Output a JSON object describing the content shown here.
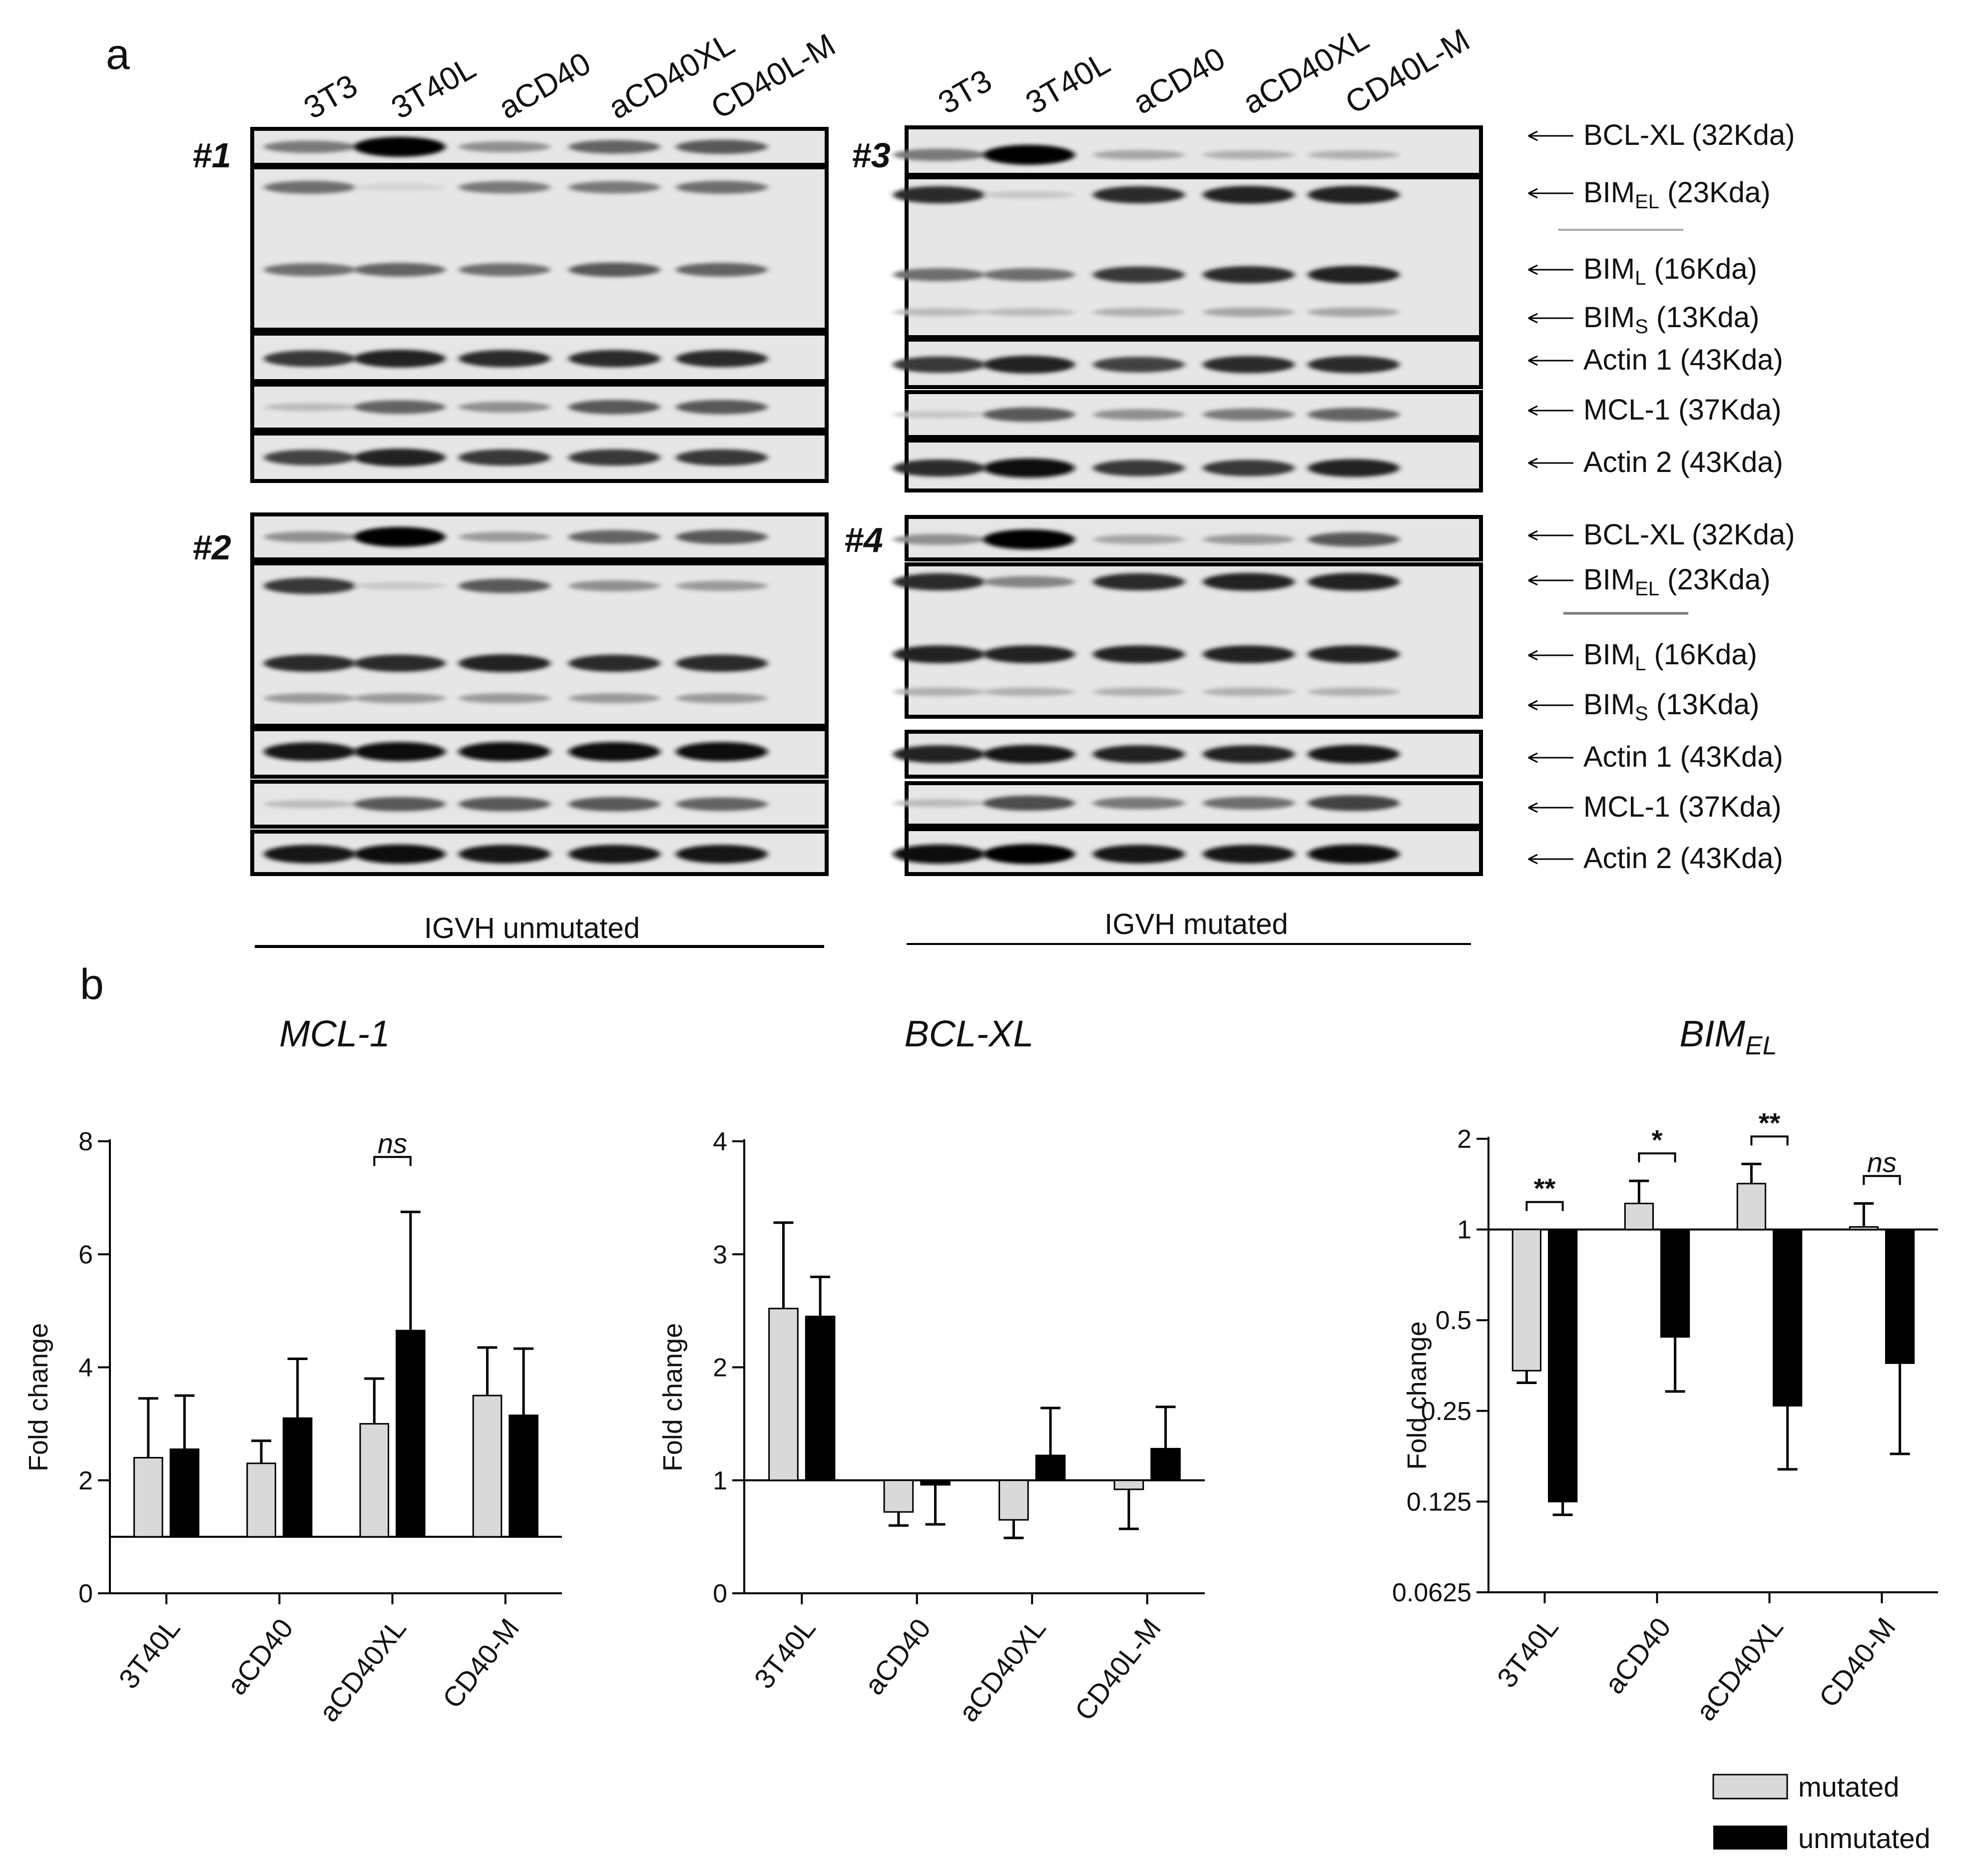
{
  "figure": {
    "panel_a_label": "a",
    "panel_b_label": "b",
    "lanes": [
      "3T3",
      "3T40L",
      "aCD40",
      "aCD40XL",
      "CD40L-M"
    ],
    "blot_numbers": [
      "#1",
      "#2",
      "#3",
      "#4"
    ],
    "groups": [
      "IGVH unmutated",
      "IGVH mutated"
    ],
    "annotations": [
      {
        "pre": "BCL-XL",
        "sub": "",
        "post": " (32Kda)"
      },
      {
        "pre": "BIM",
        "sub": "EL",
        "post": " (23Kda)"
      },
      {
        "pre": "BIM",
        "sub": "L",
        "post": " (16Kda)"
      },
      {
        "pre": "BIM",
        "sub": "S",
        "post": " (13Kda)"
      },
      {
        "pre": "Actin 1",
        "sub": "",
        "post": " (43Kda)"
      },
      {
        "pre": "MCL-1",
        "sub": "",
        "post": " (37Kda)"
      },
      {
        "pre": "Actin 2",
        "sub": "",
        "post": " (43Kda)"
      }
    ],
    "colors": {
      "mutated": "#d9d9d9",
      "unmutated": "#000000",
      "axis": "#000000"
    }
  },
  "chart_data": [
    {
      "type": "bar",
      "title": "MCL-1",
      "ylabel": "Fold change",
      "categories": [
        "3T40L",
        "aCD40",
        "aCD40XL",
        "CD40-M"
      ],
      "yticks": [
        "0",
        "2",
        "4",
        "6",
        "8"
      ],
      "ylim": [
        0,
        8
      ],
      "baseline": 1,
      "scale": "linear",
      "series": [
        {
          "name": "mutated",
          "values": [
            2.4,
            2.3,
            3.0,
            3.5
          ],
          "errors": [
            1.05,
            0.4,
            0.8,
            0.85
          ]
        },
        {
          "name": "unmutated",
          "values": [
            2.55,
            3.1,
            4.65,
            3.15
          ],
          "errors": [
            0.95,
            1.05,
            2.1,
            1.18
          ]
        }
      ],
      "significance": [
        {
          "category": "aCD40XL",
          "label": "ns"
        }
      ]
    },
    {
      "type": "bar",
      "title": "BCL-XL",
      "ylabel": "Fold change",
      "categories": [
        "3T40L",
        "aCD40",
        "aCD40XL",
        "CD40L-M"
      ],
      "yticks": [
        "0",
        "1",
        "2",
        "3",
        "4"
      ],
      "ylim": [
        0,
        4
      ],
      "baseline": 1,
      "scale": "linear",
      "series": [
        {
          "name": "mutated",
          "values": [
            2.52,
            0.72,
            0.65,
            0.92
          ],
          "errors": [
            0.76,
            0.12,
            0.16,
            0.35
          ]
        },
        {
          "name": "unmutated",
          "values": [
            2.45,
            0.96,
            1.22,
            1.28
          ],
          "errors": [
            0.35,
            0.35,
            0.42,
            0.37
          ]
        }
      ],
      "significance": []
    },
    {
      "type": "bar",
      "title": "BIM",
      "title_sub": "EL",
      "ylabel": "Fold change",
      "categories": [
        "3T40L",
        "aCD40",
        "aCD40XL",
        "CD40-M"
      ],
      "yticks": [
        "0.0625",
        "0.125",
        "0.25",
        "0.5",
        "1",
        "2"
      ],
      "ylim": [
        0.0625,
        2
      ],
      "baseline": 1,
      "scale": "log2",
      "series": [
        {
          "name": "mutated",
          "values": [
            0.34,
            1.22,
            1.42,
            1.02
          ],
          "errors_low": [
            0.31,
            1.22,
            1.42,
            1.02
          ],
          "errors_high": [
            0.34,
            1.45,
            1.65,
            1.22
          ]
        },
        {
          "name": "unmutated",
          "values": [
            0.125,
            0.44,
            0.26,
            0.36
          ],
          "errors_low": [
            0.113,
            0.29,
            0.16,
            0.18
          ],
          "errors_high": [
            0.125,
            0.44,
            0.26,
            0.36
          ]
        }
      ],
      "significance": [
        {
          "category": "3T40L",
          "label": "**"
        },
        {
          "category": "aCD40",
          "label": "*"
        },
        {
          "category": "aCD40XL",
          "label": "**"
        },
        {
          "category": "CD40-M",
          "label": "ns"
        }
      ]
    }
  ],
  "legend": [
    {
      "name": "mutated",
      "color": "#d9d9d9"
    },
    {
      "name": "unmutated",
      "color": "#000000"
    }
  ]
}
